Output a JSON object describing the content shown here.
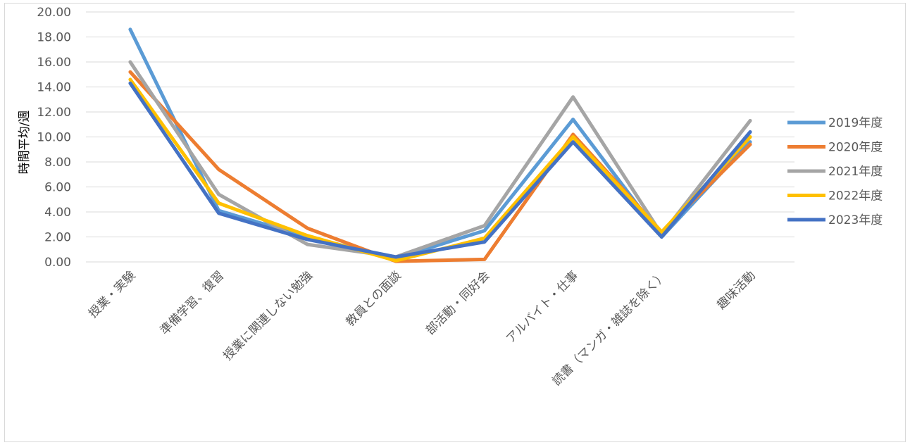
{
  "chart_data": {
    "type": "line",
    "title": "",
    "xlabel": "",
    "ylabel": "時間平均/週",
    "ylim": [
      0,
      20
    ],
    "ytick_step": 2,
    "ytick_labels": [
      "0.00",
      "2.00",
      "4.00",
      "6.00",
      "8.00",
      "10.00",
      "12.00",
      "14.00",
      "16.00",
      "18.00",
      "20.00"
    ],
    "grid": true,
    "legend_position": "right",
    "categories": [
      "授業・実験",
      "準備学習、復習",
      "授業に関連しない勉強",
      "教員との面談",
      "部活動・同好会",
      "アルバイト・仕事",
      "読書（マンガ・雑誌を除く）",
      "趣味活動"
    ],
    "series": [
      {
        "name": "2019年度",
        "color": "#5B9BD5",
        "values": [
          18.6,
          4.1,
          2.0,
          0.3,
          2.5,
          11.4,
          2.0,
          9.6
        ]
      },
      {
        "name": "2020年度",
        "color": "#ED7D31",
        "values": [
          15.2,
          7.4,
          2.7,
          0.05,
          0.2,
          10.2,
          2.4,
          9.4
        ]
      },
      {
        "name": "2021年度",
        "color": "#A5A5A5",
        "values": [
          16.0,
          5.4,
          1.4,
          0.4,
          2.9,
          13.2,
          2.2,
          11.3
        ]
      },
      {
        "name": "2022年度",
        "color": "#FFC000",
        "values": [
          14.6,
          4.7,
          2.1,
          0.1,
          1.9,
          10.0,
          2.4,
          10.0
        ]
      },
      {
        "name": "2023年度",
        "color": "#4472C4",
        "values": [
          14.3,
          3.9,
          1.8,
          0.4,
          1.6,
          9.6,
          2.0,
          10.4
        ]
      }
    ]
  }
}
